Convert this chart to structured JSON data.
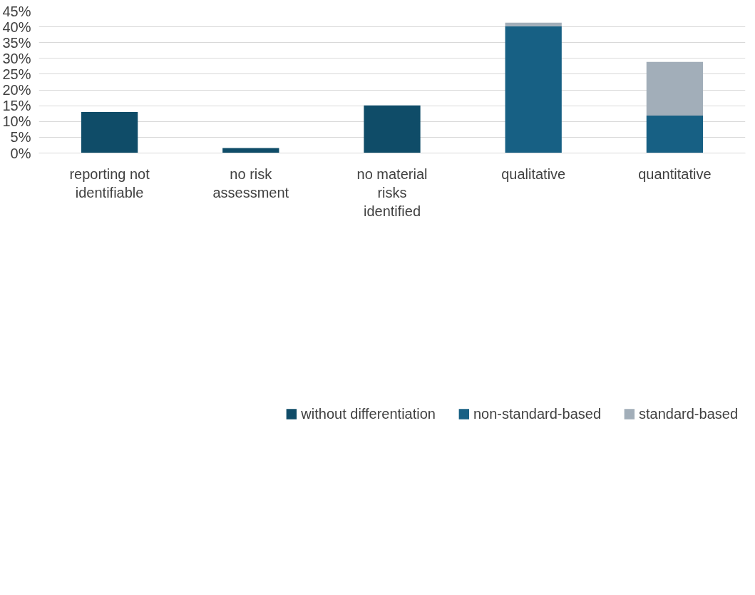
{
  "chart_data": {
    "type": "bar",
    "stacked": true,
    "categories": [
      "reporting not identifiable",
      "no risk assessment",
      "no material risks identified",
      "qualitative",
      "quantitative"
    ],
    "series": [
      {
        "name": "without differentiation",
        "color": "#0f4c68",
        "values": [
          13.0,
          1.6,
          15.1,
          null,
          null
        ]
      },
      {
        "name": "non-standard-based",
        "color": "#176084",
        "values": [
          null,
          null,
          null,
          40.2,
          11.9
        ]
      },
      {
        "name": "standard-based",
        "color": "#a2aeb9",
        "values": [
          null,
          null,
          null,
          1.1,
          17.0
        ]
      }
    ],
    "ylim": [
      0,
      45
    ],
    "yticks": [
      {
        "value": 0,
        "label": "0%"
      },
      {
        "value": 5,
        "label": "5%"
      },
      {
        "value": 10,
        "label": "10%"
      },
      {
        "value": 15,
        "label": "15%"
      },
      {
        "value": 20,
        "label": "20%"
      },
      {
        "value": 25,
        "label": "25%"
      },
      {
        "value": 30,
        "label": "30%"
      },
      {
        "value": 35,
        "label": "35%"
      },
      {
        "value": 40,
        "label": "40%"
      },
      {
        "value": 45,
        "label": "45%"
      }
    ],
    "grid": "y",
    "legend": "bottom"
  }
}
